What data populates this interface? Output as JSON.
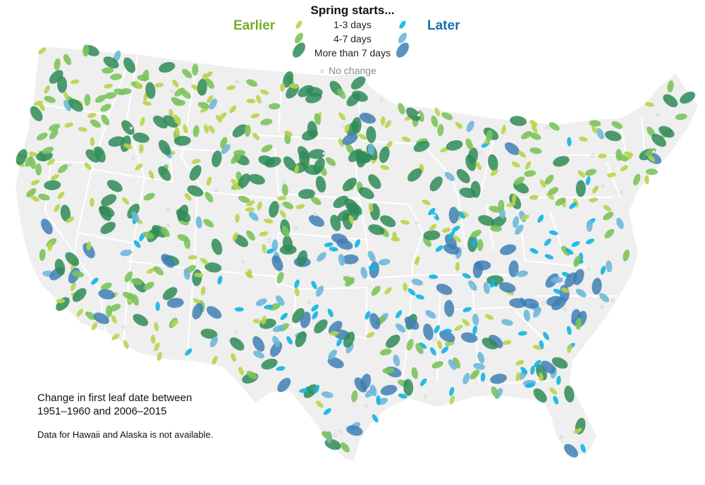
{
  "legend": {
    "title": "Spring starts...",
    "earlier_label": "Earlier",
    "later_label": "Later",
    "rows": [
      "1-3 days",
      "4-7 days",
      "More than 7 days"
    ],
    "no_change_label": "No change"
  },
  "caption": {
    "line1": "Change in first leaf date between",
    "line2": "1951–1960 and 2006–2015"
  },
  "note": "Data for Hawaii and Alaska is not available.",
  "colors": {
    "earlier_1_3": "#b8d44a",
    "earlier_4_7": "#7cc35c",
    "earlier_more_7": "#2e8b57",
    "later_1_3": "#10b4e6",
    "later_4_7": "#6fb7da",
    "later_more_7": "#3f7fb4",
    "no_change": "#bbbbbb",
    "land": "#efefef",
    "state_border": "#ffffff",
    "earlier_text": "#7aab2e",
    "later_text": "#1b6fa8"
  }
}
